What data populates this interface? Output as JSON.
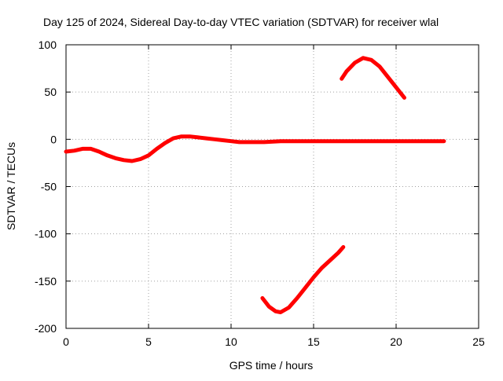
{
  "chart_data": {
    "type": "line",
    "title": "Day 125 of 2024, Sidereal Day-to-day VTEC variation (SDTVAR) for receiver wlal",
    "xlabel": "GPS time / hours",
    "ylabel": "SDTVAR / TECUs",
    "xlim": [
      0,
      25
    ],
    "ylim": [
      -200,
      100
    ],
    "xticks": [
      0,
      5,
      10,
      15,
      20,
      25
    ],
    "yticks": [
      -200,
      -150,
      -100,
      -50,
      0,
      50,
      100
    ],
    "xtick_labels": [
      "0",
      "5",
      "10",
      "15",
      "20",
      "25"
    ],
    "ytick_labels": [
      "-200",
      "-150",
      "-100",
      "-50",
      "0",
      "50",
      "100"
    ],
    "grid": true,
    "series_color": "#ff0000",
    "series": [
      {
        "name": "main",
        "x": [
          0.0,
          0.5,
          1.0,
          1.5,
          2.0,
          2.5,
          3.0,
          3.5,
          4.0,
          4.5,
          5.0,
          5.5,
          6.0,
          6.5,
          7.0,
          7.5,
          8.0,
          8.5,
          9.0,
          9.5,
          10.0,
          10.5,
          11.0,
          12.0,
          13.0,
          14.0,
          15.0,
          16.0,
          17.0,
          18.0,
          19.0,
          20.0,
          21.0,
          22.0,
          22.9
        ],
        "y": [
          -13,
          -12,
          -10,
          -10,
          -13,
          -17,
          -20,
          -22,
          -23,
          -21,
          -17,
          -10,
          -4,
          1,
          3,
          3,
          2,
          1,
          0,
          -1,
          -2,
          -3,
          -3,
          -3,
          -2,
          -2,
          -2,
          -2,
          -2,
          -2,
          -2,
          -2,
          -2,
          -2,
          -2
        ]
      },
      {
        "name": "arc-upper",
        "x": [
          16.7,
          17.0,
          17.5,
          18.0,
          18.5,
          19.0,
          19.5,
          20.0,
          20.5
        ],
        "y": [
          64,
          72,
          81,
          86,
          84,
          77,
          66,
          55,
          44
        ]
      },
      {
        "name": "arc-lower",
        "x": [
          11.9,
          12.3,
          12.7,
          13.0,
          13.5,
          14.0,
          14.5,
          15.0,
          15.5,
          16.0,
          16.5,
          16.8
        ],
        "y": [
          -168,
          -177,
          -182,
          -183,
          -178,
          -168,
          -157,
          -146,
          -136,
          -128,
          -120,
          -114
        ]
      }
    ]
  }
}
